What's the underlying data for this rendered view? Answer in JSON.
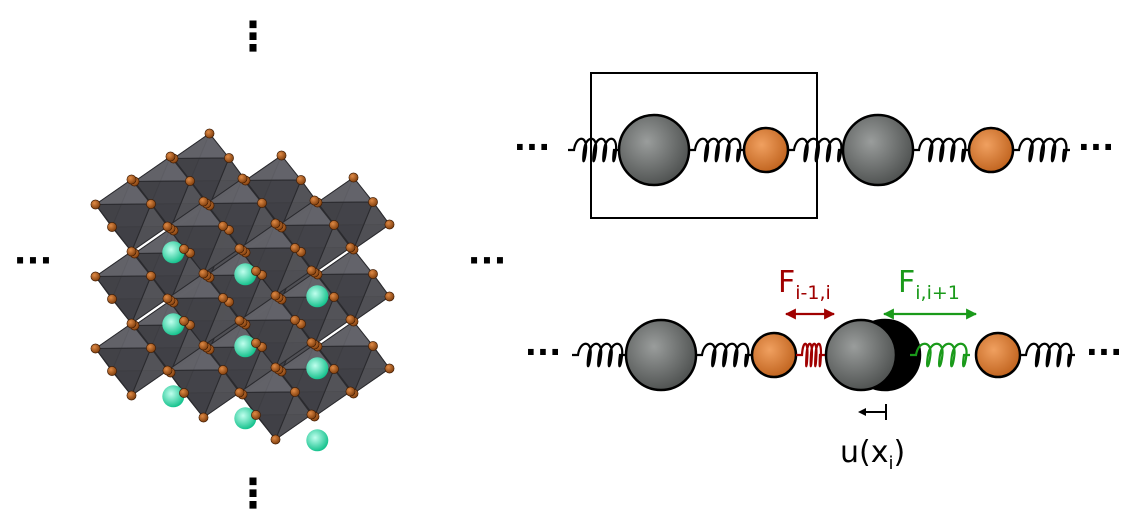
{
  "ellipsis": {
    "crystal_top": "⋮",
    "crystal_bottom": "⋮",
    "crystal_left": "···",
    "crystal_right": "···",
    "chain1_left": "···",
    "chain1_right": "···",
    "chain2_left": "···",
    "chain2_right": "···"
  },
  "labels": {
    "force_left": {
      "base": "F",
      "subscript": "i-1,i"
    },
    "force_right": {
      "base": "F",
      "subscript": "i,i+1"
    },
    "displacement": {
      "prefix": "u(x",
      "subscript": "i",
      "suffix": ")"
    }
  },
  "colors": {
    "octahedron": "#4a4a4f",
    "anion": "#b35a15",
    "cation": "#2de0b0",
    "heavy_atom": "#6e7170",
    "light_atom": "#d8782e",
    "displaced_atom": "#000000",
    "compressed_spring": "#a00000",
    "stretched_spring": "#1a9a1a",
    "spring": "#000000"
  }
}
